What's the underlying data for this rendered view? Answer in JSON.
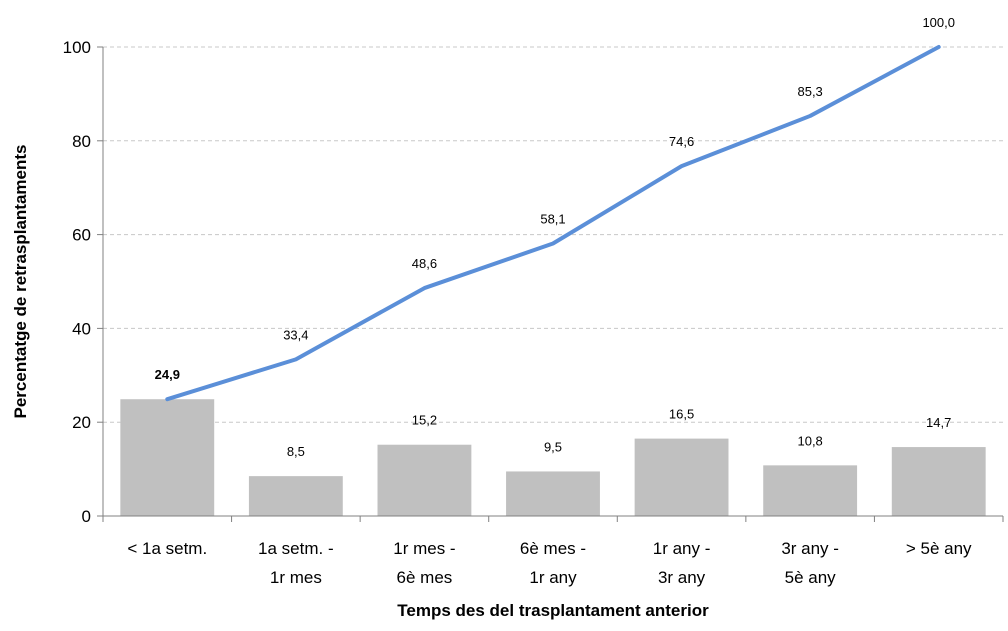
{
  "chart_data": {
    "type": "bar",
    "categories": [
      [
        "< 1a setm."
      ],
      [
        "1a setm. -",
        "1r mes"
      ],
      [
        "1r mes -",
        "6è mes"
      ],
      [
        "6è mes  -",
        "1r any"
      ],
      [
        "1r any -",
        "3r any"
      ],
      [
        "3r any -",
        "5è any"
      ],
      [
        "> 5è any"
      ]
    ],
    "series": [
      {
        "type": "bar",
        "values": [
          24.9,
          8.5,
          15.2,
          9.5,
          16.5,
          10.8,
          14.7
        ],
        "labels": [
          "24,9",
          "8,5",
          "15,2",
          "9,5",
          "16,5",
          "10,8",
          "14,7"
        ],
        "color": "#c0c0c0"
      },
      {
        "type": "line",
        "values": [
          24.9,
          33.4,
          48.6,
          58.1,
          74.6,
          85.3,
          100.0
        ],
        "labels": [
          "",
          "33,4",
          "48,6",
          "58,1",
          "74,6",
          "85,3",
          "100,0"
        ],
        "color": "#5b8fd8"
      }
    ],
    "xlabel": "Temps des del trasplantament anterior",
    "ylabel": "Percentatge de retrasplantaments",
    "ylim": [
      0,
      100
    ],
    "yticks": [
      0,
      20,
      40,
      60,
      80,
      100
    ],
    "grid": true
  }
}
